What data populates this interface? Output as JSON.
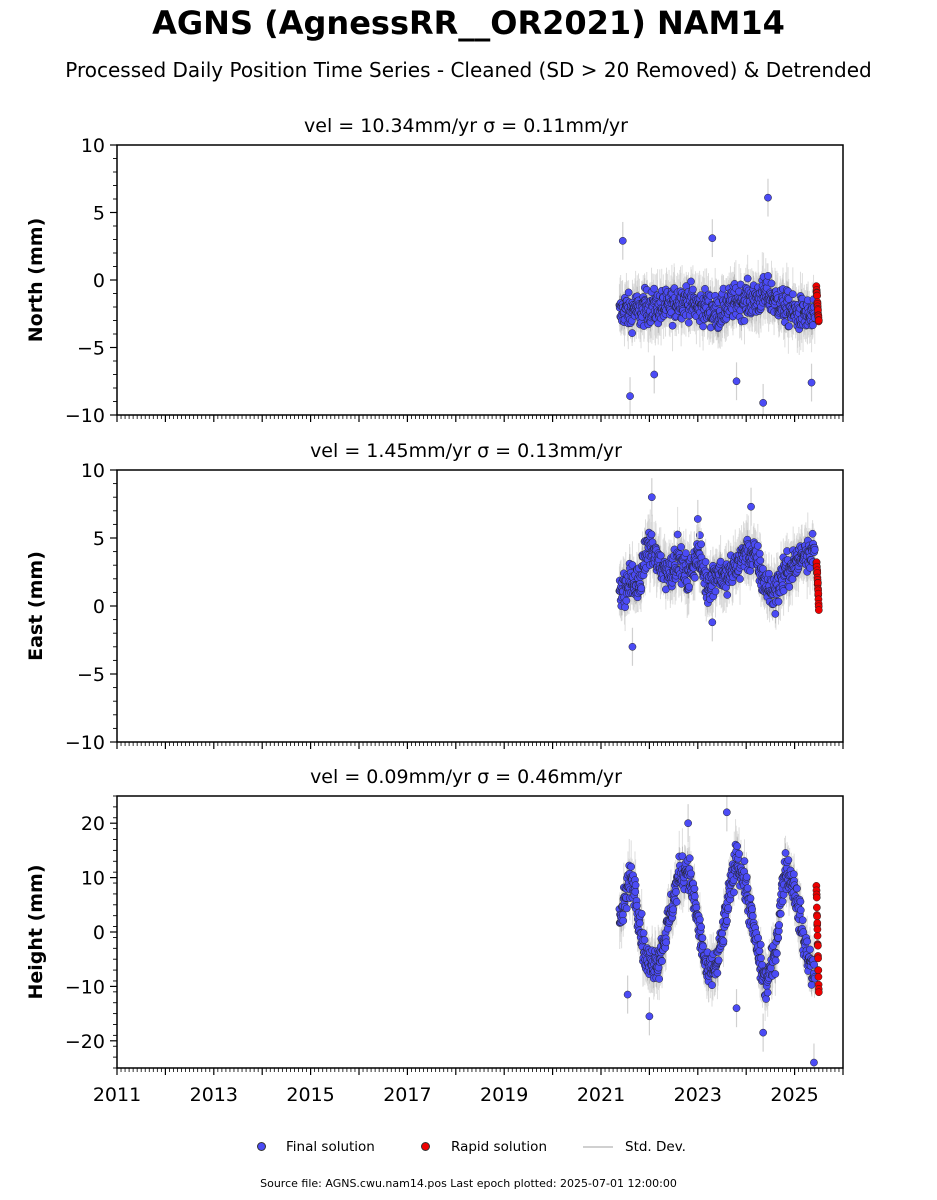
{
  "title": "AGNS (AgnessRR__OR2021) NAM14",
  "subtitle": "Processed Daily Position Time Series - Cleaned (SD > 20 Removed) & Detrended",
  "colors": {
    "final": "#4b4bf5",
    "rapid": "#ee0000",
    "stddev": "#d0d0d0"
  },
  "legend": {
    "final": "Final solution",
    "rapid": "Rapid solution",
    "stddev": "Std. Dev."
  },
  "footer": "Source file: AGNS.cwu.nam14.pos  Last epoch plotted: 2025-07-01 12:00:00",
  "chart_data": [
    {
      "type": "scatter",
      "title": "vel = 10.34mm/yr   σ = 0.11mm/yr",
      "ylabel": "North (mm)",
      "xlim": [
        2011,
        2026
      ],
      "ylim": [
        -10,
        10
      ],
      "yticks": [
        10,
        5,
        0,
        -5,
        -10
      ],
      "ytick_labels": [
        "10",
        "5",
        "0",
        "−5",
        "−10"
      ],
      "series": [
        {
          "name": "Final solution",
          "x": [
            2021.4,
            2021.5,
            2021.6,
            2021.7,
            2021.8,
            2021.9,
            2022.0,
            2022.2,
            2022.4,
            2022.6,
            2022.8,
            2023.0,
            2023.2,
            2023.4,
            2023.6,
            2023.8,
            2024.0,
            2024.2,
            2024.4,
            2024.6,
            2024.8,
            2025.0,
            2025.2,
            2025.4
          ],
          "y": [
            -2.5,
            -2.0,
            -2.5,
            -2.0,
            -2.5,
            -2.0,
            -2.0,
            -2.0,
            -2.0,
            -1.5,
            -1.5,
            -2.0,
            -2.0,
            -2.5,
            -2.0,
            -1.5,
            -1.5,
            -1.5,
            -1.0,
            -1.5,
            -2.0,
            -2.5,
            -2.5,
            -3.0
          ]
        },
        {
          "name": "Rapid solution",
          "x": [
            2025.45,
            2025.47,
            2025.49,
            2025.5
          ],
          "y": [
            -0.5,
            -1.5,
            -2.5,
            -3.0
          ]
        }
      ],
      "outliers": {
        "x": [
          2021.45,
          2021.6,
          2022.1,
          2023.3,
          2023.8,
          2024.35,
          2024.45,
          2025.35
        ],
        "y": [
          2.9,
          -8.6,
          -7.0,
          3.1,
          -7.5,
          -9.1,
          6.1,
          -7.6
        ]
      }
    },
    {
      "type": "scatter",
      "title": "vel = 1.45mm/yr   σ = 0.13mm/yr",
      "ylabel": "East (mm)",
      "xlim": [
        2011,
        2026
      ],
      "ylim": [
        -10,
        10
      ],
      "yticks": [
        10,
        5,
        0,
        -5,
        -10
      ],
      "ytick_labels": [
        "10",
        "5",
        "0",
        "−5",
        "−10"
      ],
      "series": [
        {
          "name": "Final solution",
          "x": [
            2021.4,
            2021.5,
            2021.6,
            2021.7,
            2021.8,
            2021.9,
            2022.0,
            2022.2,
            2022.4,
            2022.6,
            2022.8,
            2023.0,
            2023.2,
            2023.4,
            2023.6,
            2023.8,
            2024.0,
            2024.2,
            2024.4,
            2024.6,
            2024.8,
            2025.0,
            2025.2,
            2025.4
          ],
          "y": [
            1.5,
            1.0,
            2.0,
            1.5,
            1.5,
            3.5,
            4.5,
            3.0,
            2.5,
            3.5,
            2.0,
            4.0,
            1.5,
            2.5,
            2.0,
            3.0,
            4.0,
            3.5,
            1.5,
            1.0,
            2.5,
            3.0,
            4.0,
            4.0
          ]
        },
        {
          "name": "Rapid solution",
          "x": [
            2025.45,
            2025.47,
            2025.49,
            2025.5
          ],
          "y": [
            3.2,
            2.5,
            1.5,
            -0.3
          ]
        }
      ],
      "outliers": {
        "x": [
          2021.65,
          2022.05,
          2023.0,
          2023.3,
          2024.1
        ],
        "y": [
          -3.0,
          8.0,
          6.4,
          -1.2,
          7.3
        ]
      }
    },
    {
      "type": "scatter",
      "title": "vel = 0.09mm/yr   σ = 0.46mm/yr",
      "ylabel": "Height (mm)",
      "xlim": [
        2011,
        2026
      ],
      "ylim": [
        -25,
        25
      ],
      "yticks": [
        20,
        10,
        0,
        -10,
        -20
      ],
      "ytick_labels": [
        "20",
        "10",
        "0",
        "−10",
        "−20"
      ],
      "xticks": [
        2011,
        2013,
        2015,
        2017,
        2019,
        2021,
        2023,
        2025
      ],
      "series": [
        {
          "name": "Final solution",
          "x": [
            2021.4,
            2021.5,
            2021.6,
            2021.7,
            2021.8,
            2021.9,
            2022.0,
            2022.2,
            2022.4,
            2022.6,
            2022.8,
            2023.0,
            2023.2,
            2023.4,
            2023.6,
            2023.8,
            2024.0,
            2024.2,
            2024.4,
            2024.6,
            2024.8,
            2025.0,
            2025.2,
            2025.4
          ],
          "y": [
            2,
            6,
            10,
            8,
            2,
            -4,
            -6,
            -5,
            2,
            10,
            12,
            2,
            -8,
            -6,
            4,
            14,
            8,
            -2,
            -10,
            -4,
            12,
            8,
            -2,
            -8
          ]
        },
        {
          "name": "Rapid solution",
          "x": [
            2025.45,
            2025.47,
            2025.49,
            2025.5
          ],
          "y": [
            8.5,
            2.0,
            -4.0,
            -11.5
          ]
        }
      ],
      "outliers": {
        "x": [
          2021.55,
          2022.0,
          2022.8,
          2023.6,
          2023.8,
          2024.35,
          2025.4
        ],
        "y": [
          -11.5,
          -15.5,
          20.0,
          22.0,
          -14.0,
          -18.5,
          -24.0
        ]
      }
    }
  ]
}
